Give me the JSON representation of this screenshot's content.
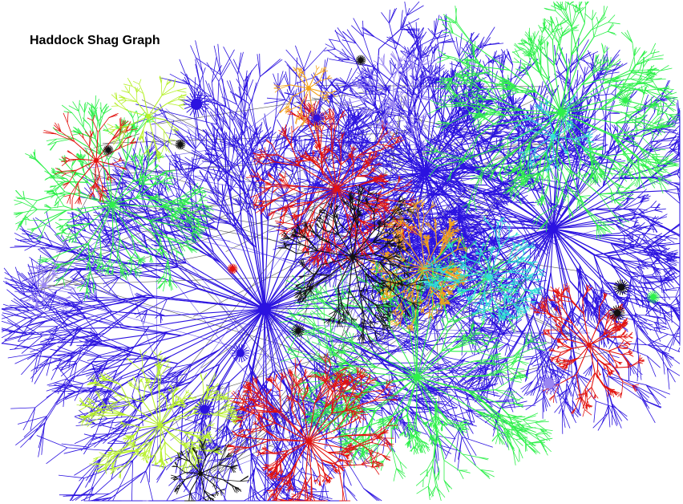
{
  "title": "Haddock Shag Graph",
  "colors": {
    "background": "#ffffff",
    "title": "#000000",
    "palette": {
      "blue": "#2b12e0",
      "green": "#2df04a",
      "red": "#e2120e",
      "orange": "#f3a21c",
      "lavender": "#9a86f2",
      "cyan": "#2fe3d6",
      "lime": "#b6f02a",
      "black": "#111111"
    }
  },
  "clusters": [
    {
      "name": "blue-hub-east",
      "color": "blue",
      "size": "large"
    },
    {
      "name": "blue-hub-southwest",
      "color": "blue",
      "size": "large"
    },
    {
      "name": "blue-hub-north",
      "color": "blue",
      "size": "large"
    },
    {
      "name": "green-cluster-northeast",
      "color": "green",
      "size": "medium"
    },
    {
      "name": "green-cluster-west",
      "color": "green",
      "size": "medium"
    },
    {
      "name": "green-cluster-south",
      "color": "green",
      "size": "medium"
    },
    {
      "name": "red-cluster-south",
      "color": "red",
      "size": "medium"
    },
    {
      "name": "red-cluster-center",
      "color": "red",
      "size": "medium"
    },
    {
      "name": "red-cluster-west",
      "color": "red",
      "size": "small"
    },
    {
      "name": "red-cluster-southeast",
      "color": "red",
      "size": "small"
    },
    {
      "name": "orange-cluster-center",
      "color": "orange",
      "size": "medium"
    },
    {
      "name": "orange-cluster-north",
      "color": "orange",
      "size": "small"
    },
    {
      "name": "lavender-cluster-north",
      "color": "lavender",
      "size": "small"
    },
    {
      "name": "lavender-cluster-west",
      "color": "lavender",
      "size": "small"
    },
    {
      "name": "cyan-cluster-center",
      "color": "cyan",
      "size": "small"
    },
    {
      "name": "cyan-cluster-northeast",
      "color": "cyan",
      "size": "small"
    },
    {
      "name": "lime-cluster-southwest",
      "color": "lime",
      "size": "medium"
    },
    {
      "name": "lime-cluster-northwest",
      "color": "lime",
      "size": "small"
    },
    {
      "name": "black-cluster-center",
      "color": "black",
      "size": "small"
    },
    {
      "name": "black-cluster-southwest",
      "color": "black",
      "size": "small"
    }
  ]
}
